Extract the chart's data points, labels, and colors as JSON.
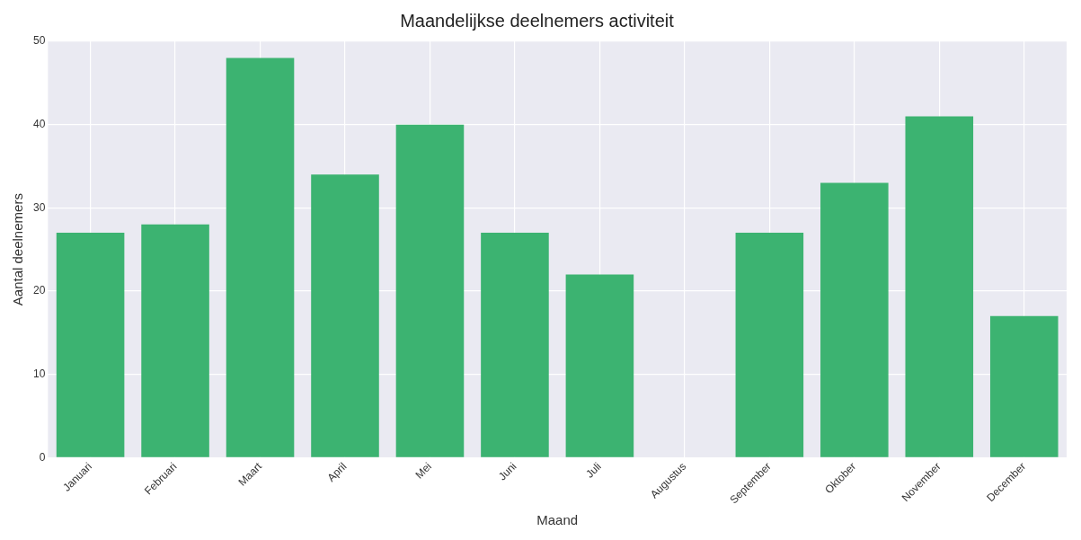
{
  "chart_data": {
    "type": "bar",
    "title": "Maandelijkse deelnemers activiteit",
    "xlabel": "Maand",
    "ylabel": "Aantal deelnemers",
    "categories": [
      "Januari",
      "Februari",
      "Maart",
      "April",
      "Mei",
      "Juni",
      "Juli",
      "Augustus",
      "September",
      "Oktober",
      "November",
      "December"
    ],
    "values": [
      27,
      28,
      48,
      34,
      40,
      27,
      22,
      0,
      27,
      33,
      41,
      17
    ],
    "color": "#3cb371",
    "ylim": [
      0,
      50
    ],
    "yticks": [
      0,
      10,
      20,
      30,
      40,
      50
    ],
    "grid": true
  }
}
